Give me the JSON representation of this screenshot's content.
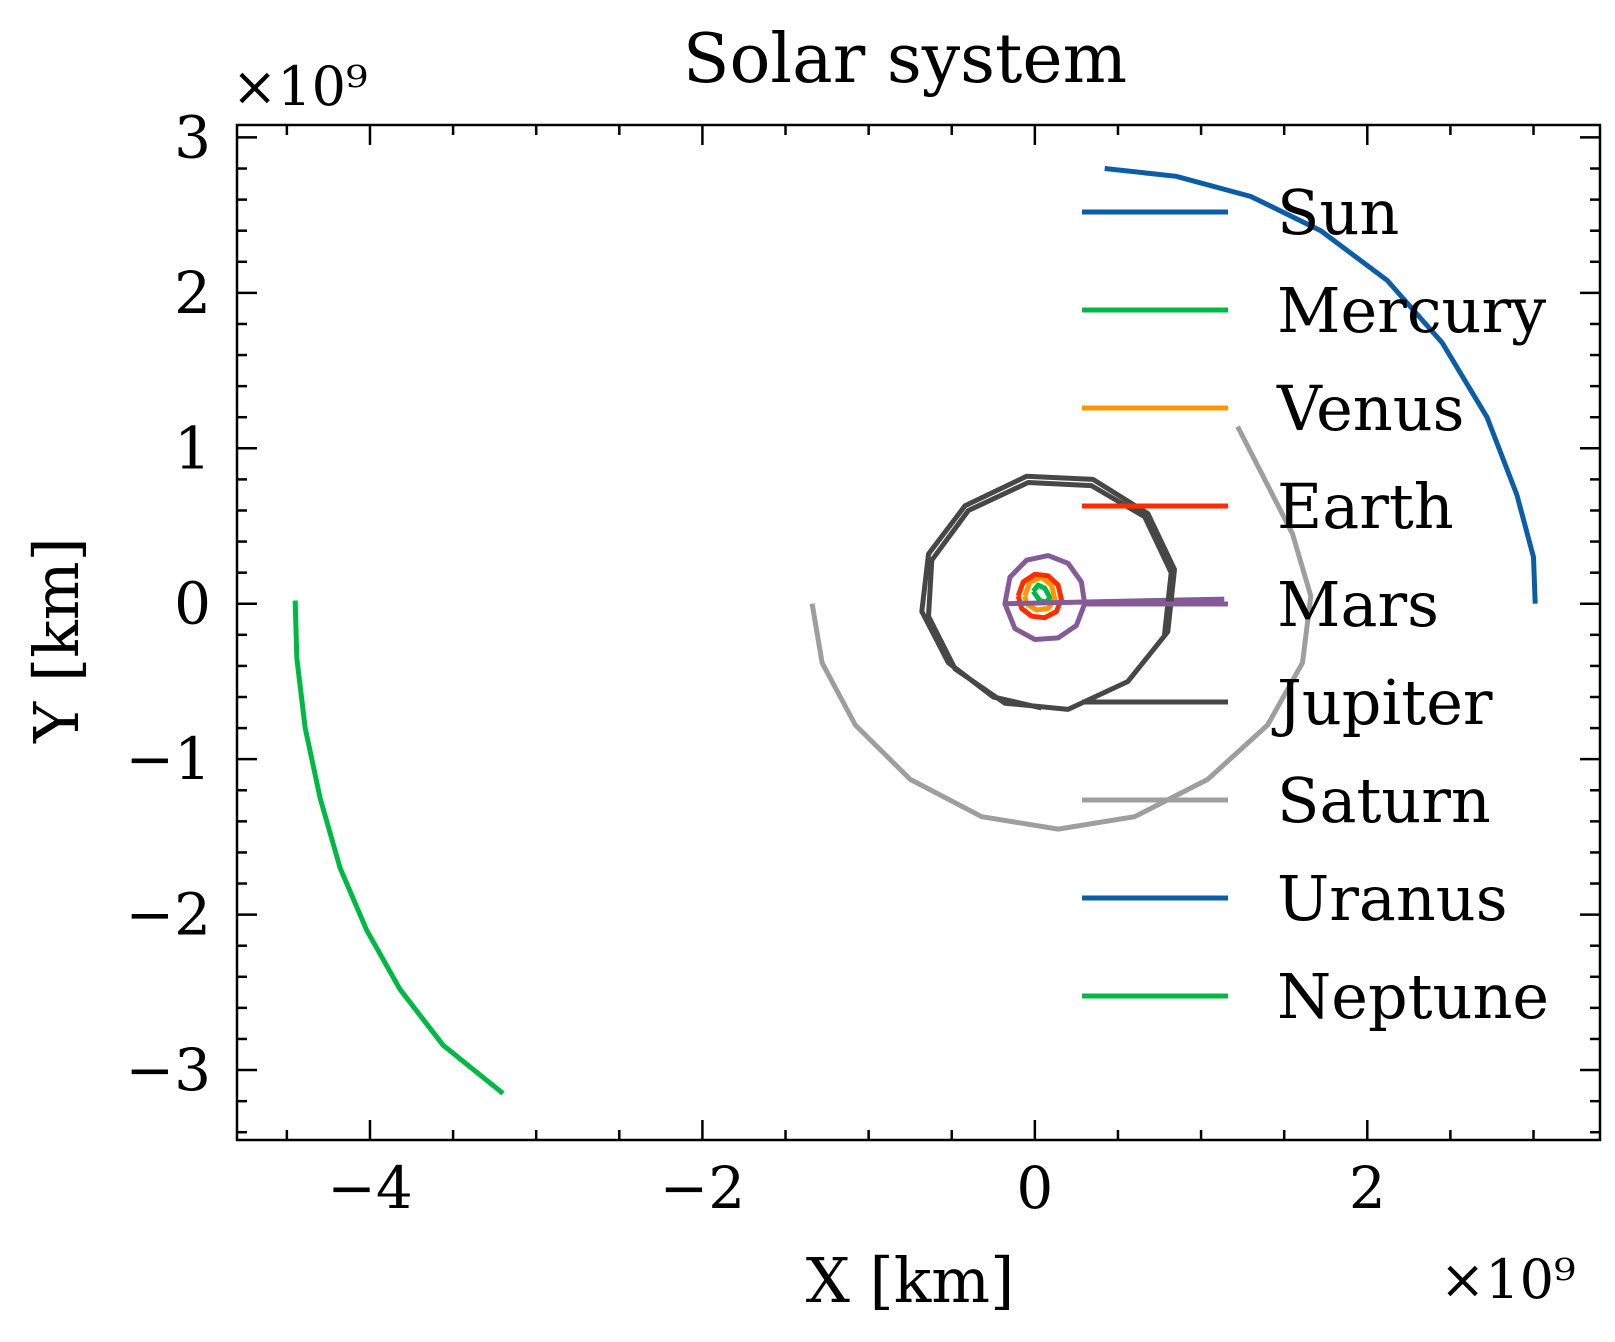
{
  "chart_data": {
    "type": "line",
    "title": "Solar system",
    "xlabel": "X [km]",
    "ylabel": "Y [km]",
    "x_offset_text": "×10⁹",
    "y_offset_text": "×10⁹",
    "xlim": [
      -4.8,
      3.4
    ],
    "ylim": [
      -3.45,
      3.08
    ],
    "x_ticks": [
      {
        "value": -4,
        "label": "−4"
      },
      {
        "value": -2,
        "label": "−2"
      },
      {
        "value": 0,
        "label": "0"
      },
      {
        "value": 2,
        "label": "2"
      }
    ],
    "y_ticks": [
      {
        "value": 3,
        "label": "3"
      },
      {
        "value": 2,
        "label": "2"
      },
      {
        "value": 1,
        "label": "1"
      },
      {
        "value": 0,
        "label": "0"
      },
      {
        "value": -1,
        "label": "−1"
      },
      {
        "value": -2,
        "label": "−2"
      },
      {
        "value": -3,
        "label": "−3"
      }
    ],
    "grid": false,
    "legend_position": "top-right",
    "series": [
      {
        "name": "Sun",
        "color": "#0C5DA5",
        "points": [
          [
            0.42,
            2.8
          ],
          [
            0.85,
            2.75
          ],
          [
            1.3,
            2.62
          ],
          [
            1.72,
            2.4
          ],
          [
            2.12,
            2.08
          ],
          [
            2.45,
            1.68
          ],
          [
            2.72,
            1.2
          ],
          [
            2.9,
            0.7
          ],
          [
            3.0,
            0.3
          ],
          [
            3.01,
            0.0
          ]
        ]
      },
      {
        "name": "Mercury",
        "color": "#00B945",
        "points": [
          [
            -0.01,
            0.08
          ],
          [
            0.02,
            0.12
          ],
          [
            0.06,
            0.1
          ],
          [
            0.09,
            0.04
          ],
          [
            0.07,
            0.01
          ],
          [
            0.03,
            0.02
          ],
          [
            -0.01,
            0.08
          ]
        ]
      },
      {
        "name": "Venus",
        "color": "#FF9500",
        "points": [
          [
            -0.06,
            0.05
          ],
          [
            -0.03,
            0.14
          ],
          [
            0.04,
            0.17
          ],
          [
            0.1,
            0.12
          ],
          [
            0.12,
            0.03
          ],
          [
            0.08,
            -0.03
          ],
          [
            0.01,
            -0.04
          ],
          [
            -0.05,
            0.0
          ],
          [
            -0.06,
            0.05
          ]
        ]
      },
      {
        "name": "Earth",
        "color": "#FF2C00",
        "points": [
          [
            -0.1,
            0.05
          ],
          [
            -0.07,
            0.14
          ],
          [
            0.0,
            0.19
          ],
          [
            0.08,
            0.18
          ],
          [
            0.14,
            0.12
          ],
          [
            0.16,
            0.03
          ],
          [
            0.13,
            -0.05
          ],
          [
            0.06,
            -0.09
          ],
          [
            -0.02,
            -0.08
          ],
          [
            -0.08,
            -0.03
          ],
          [
            -0.1,
            0.05
          ]
        ]
      },
      {
        "name": "Mars",
        "color": "#845B97",
        "points": [
          [
            -0.18,
            0.0
          ],
          [
            -0.15,
            0.17
          ],
          [
            -0.05,
            0.28
          ],
          [
            0.08,
            0.31
          ],
          [
            0.2,
            0.26
          ],
          [
            0.28,
            0.14
          ],
          [
            0.3,
            0.0
          ],
          [
            0.25,
            -0.14
          ],
          [
            0.14,
            -0.22
          ],
          [
            0.0,
            -0.23
          ],
          [
            -0.12,
            -0.16
          ],
          [
            -0.18,
            0.0
          ],
          [
            1.14,
            0.03
          ]
        ]
      },
      {
        "name": "Jupiter",
        "color": "#474747",
        "points": [
          [
            0.04,
            -0.67
          ],
          [
            -0.25,
            -0.6
          ],
          [
            -0.52,
            -0.38
          ],
          [
            -0.68,
            -0.05
          ],
          [
            -0.64,
            0.32
          ],
          [
            -0.42,
            0.63
          ],
          [
            -0.05,
            0.82
          ],
          [
            0.35,
            0.8
          ],
          [
            0.68,
            0.58
          ],
          [
            0.84,
            0.22
          ],
          [
            0.8,
            -0.18
          ],
          [
            0.56,
            -0.5
          ],
          [
            0.2,
            -0.68
          ],
          [
            -0.18,
            -0.64
          ],
          [
            -0.48,
            -0.42
          ],
          [
            -0.64,
            -0.08
          ],
          [
            -0.62,
            0.28
          ],
          [
            -0.4,
            0.6
          ],
          [
            -0.04,
            0.78
          ],
          [
            0.34,
            0.76
          ],
          [
            0.66,
            0.56
          ],
          [
            0.82,
            0.2
          ],
          [
            0.78,
            -0.2
          ]
        ]
      },
      {
        "name": "Saturn",
        "color": "#9E9E9E",
        "points": [
          [
            -1.34,
            0.0
          ],
          [
            -1.28,
            -0.38
          ],
          [
            -1.08,
            -0.78
          ],
          [
            -0.75,
            -1.13
          ],
          [
            -0.32,
            -1.37
          ],
          [
            0.14,
            -1.45
          ],
          [
            0.6,
            -1.37
          ],
          [
            1.04,
            -1.13
          ],
          [
            1.4,
            -0.78
          ],
          [
            1.61,
            -0.38
          ],
          [
            1.66,
            0.05
          ],
          [
            1.55,
            0.45
          ],
          [
            1.22,
            1.14
          ]
        ]
      },
      {
        "name": "Uranus",
        "color": "#0C5DA5",
        "points": []
      },
      {
        "name": "Neptune",
        "color": "#00B945",
        "points": [
          [
            -4.45,
            0.02
          ],
          [
            -4.44,
            -0.35
          ],
          [
            -4.39,
            -0.8
          ],
          [
            -4.3,
            -1.25
          ],
          [
            -4.18,
            -1.7
          ],
          [
            -4.02,
            -2.1
          ],
          [
            -3.82,
            -2.48
          ],
          [
            -3.56,
            -2.84
          ],
          [
            -3.2,
            -3.15
          ]
        ]
      }
    ]
  }
}
